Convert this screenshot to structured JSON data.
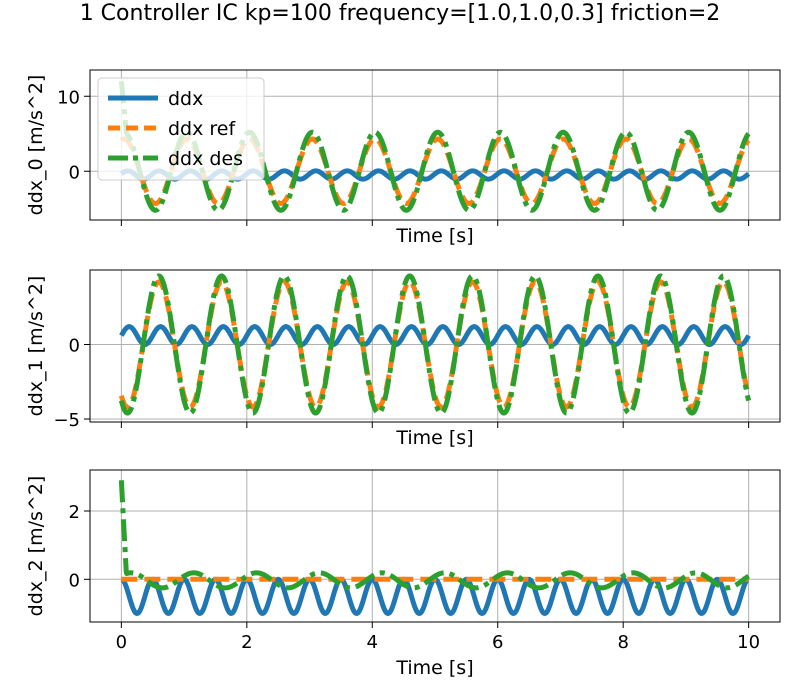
{
  "figure": {
    "suptitle": "1 Controller IC kp=100 frequency=[1.0,1.0,0.3] friction=2"
  },
  "colors": {
    "ddx": "#1f77b4",
    "ddx_ref": "#ff7f0e",
    "ddx_des": "#2ca02c",
    "grid": "#b0b0b0"
  },
  "chart_data": [
    {
      "type": "line",
      "title": "",
      "xlabel": "Time [s]",
      "ylabel": "ddx_0 [m/s^2]",
      "xlim": [
        -0.5,
        10.5
      ],
      "ylim": [
        -6.5,
        13.5
      ],
      "xticks": [
        0,
        2,
        4,
        6,
        8,
        10
      ],
      "xtick_labels_visible": false,
      "yticks": [
        0,
        10
      ],
      "ytick_labels": [
        "0",
        "10"
      ],
      "grid": true,
      "legend": {
        "placement": "top-left",
        "entries": [
          "ddx",
          "ddx ref",
          "ddx des"
        ]
      },
      "series": [
        {
          "name": "ddx",
          "style": "solid",
          "signal": {
            "kind": "sine",
            "amplitude": 0.55,
            "frequency_hz": 2.0,
            "phase": 0.3,
            "offset": -0.5
          }
        },
        {
          "name": "ddx ref",
          "style": "dashed",
          "signal": {
            "kind": "sine",
            "amplitude": 4.3,
            "frequency_hz": 1.0,
            "phase": 1.3,
            "offset": 0.0
          }
        },
        {
          "name": "ddx des",
          "style": "dashdot",
          "signal": {
            "kind": "sine",
            "amplitude": 5.2,
            "frequency_hz": 1.0,
            "phase": 1.3,
            "offset": 0.0,
            "start_spike": 12.0
          }
        }
      ]
    },
    {
      "type": "line",
      "title": "",
      "xlabel": "Time [s]",
      "ylabel": "ddx_1 [m/s^2]",
      "xlim": [
        -0.5,
        10.5
      ],
      "ylim": [
        -5.2,
        5.0
      ],
      "xticks": [
        0,
        2,
        4,
        6,
        8,
        10
      ],
      "xtick_labels_visible": false,
      "yticks": [
        -5,
        0
      ],
      "ytick_labels": [
        "−5",
        "0"
      ],
      "grid": true,
      "legend": null,
      "series": [
        {
          "name": "ddx",
          "style": "solid",
          "signal": {
            "kind": "sine",
            "amplitude": 0.6,
            "frequency_hz": 2.0,
            "phase": 0.0,
            "offset": 0.6
          }
        },
        {
          "name": "ddx ref",
          "style": "dashed",
          "signal": {
            "kind": "sine",
            "amplitude": 4.2,
            "frequency_hz": 1.0,
            "phase": 4.1,
            "offset": 0.0
          }
        },
        {
          "name": "ddx des",
          "style": "dashdot",
          "signal": {
            "kind": "sine",
            "amplitude": 4.6,
            "frequency_hz": 1.0,
            "phase": 4.1,
            "offset": 0.0
          }
        }
      ]
    },
    {
      "type": "line",
      "title": "",
      "xlabel": "Time [s]",
      "ylabel": "ddx_2 [m/s^2]",
      "xlim": [
        -0.5,
        10.5
      ],
      "ylim": [
        -1.25,
        3.2
      ],
      "xticks": [
        0,
        2,
        4,
        6,
        8,
        10
      ],
      "xtick_labels": [
        "0",
        "2",
        "4",
        "6",
        "8",
        "10"
      ],
      "xtick_labels_visible": true,
      "yticks": [
        0,
        2
      ],
      "ytick_labels": [
        "0",
        "2"
      ],
      "grid": true,
      "legend": null,
      "series": [
        {
          "name": "ddx",
          "style": "solid",
          "signal": {
            "kind": "sine",
            "amplitude": 0.5,
            "frequency_hz": 2.0,
            "phase": 1.57,
            "offset": -0.5
          }
        },
        {
          "name": "ddx ref",
          "style": "dashed",
          "signal": {
            "kind": "constant",
            "value": 0.0
          }
        },
        {
          "name": "ddx des",
          "style": "dashdot",
          "signal": {
            "kind": "sine",
            "amplitude": 0.22,
            "frequency_hz": 1.0,
            "phase": 0.6,
            "offset": -0.03,
            "start_spike": 2.9
          }
        }
      ]
    }
  ]
}
